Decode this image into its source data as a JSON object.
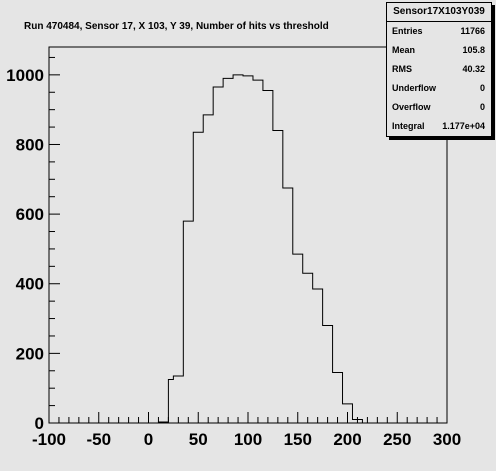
{
  "chart_data": {
    "type": "histogram",
    "title": "Run 470484, Sensor 17, X 103, Y 39, Number of hits vs threshold",
    "xlabel": "",
    "ylabel": "",
    "xlim": [
      -100,
      300
    ],
    "ylim": [
      0,
      1080
    ],
    "x_ticks": [
      "-100",
      "-50",
      "0",
      "50",
      "100",
      "150",
      "200",
      "250",
      "300"
    ],
    "y_ticks": [
      "0",
      "200",
      "400",
      "600",
      "800",
      "1000"
    ],
    "bin_width": 10,
    "bins": [
      {
        "x0": 10,
        "value": 3
      },
      {
        "x0": 20,
        "value": 125
      },
      {
        "x0": 25,
        "value": 135
      },
      {
        "x0": 35,
        "value": 580
      },
      {
        "x0": 45,
        "value": 835
      },
      {
        "x0": 55,
        "value": 885
      },
      {
        "x0": 65,
        "value": 965
      },
      {
        "x0": 75,
        "value": 990
      },
      {
        "x0": 85,
        "value": 1000
      },
      {
        "x0": 95,
        "value": 997
      },
      {
        "x0": 105,
        "value": 985
      },
      {
        "x0": 115,
        "value": 955
      },
      {
        "x0": 125,
        "value": 840
      },
      {
        "x0": 135,
        "value": 675
      },
      {
        "x0": 145,
        "value": 485
      },
      {
        "x0": 155,
        "value": 430
      },
      {
        "x0": 165,
        "value": 385
      },
      {
        "x0": 175,
        "value": 280
      },
      {
        "x0": 185,
        "value": 145
      },
      {
        "x0": 195,
        "value": 55
      },
      {
        "x0": 205,
        "value": 10
      },
      {
        "x0": 215,
        "value": 0
      }
    ]
  },
  "stats": {
    "title": "Sensor17X103Y039",
    "rows": [
      {
        "label": "Entries",
        "value": "11766"
      },
      {
        "label": "Mean",
        "value": "105.8"
      },
      {
        "label": "RMS",
        "value": "40.32"
      },
      {
        "label": "Underflow",
        "value": "0"
      },
      {
        "label": "Overflow",
        "value": "0"
      },
      {
        "label": "Integral",
        "value": "1.177e+04"
      }
    ]
  }
}
